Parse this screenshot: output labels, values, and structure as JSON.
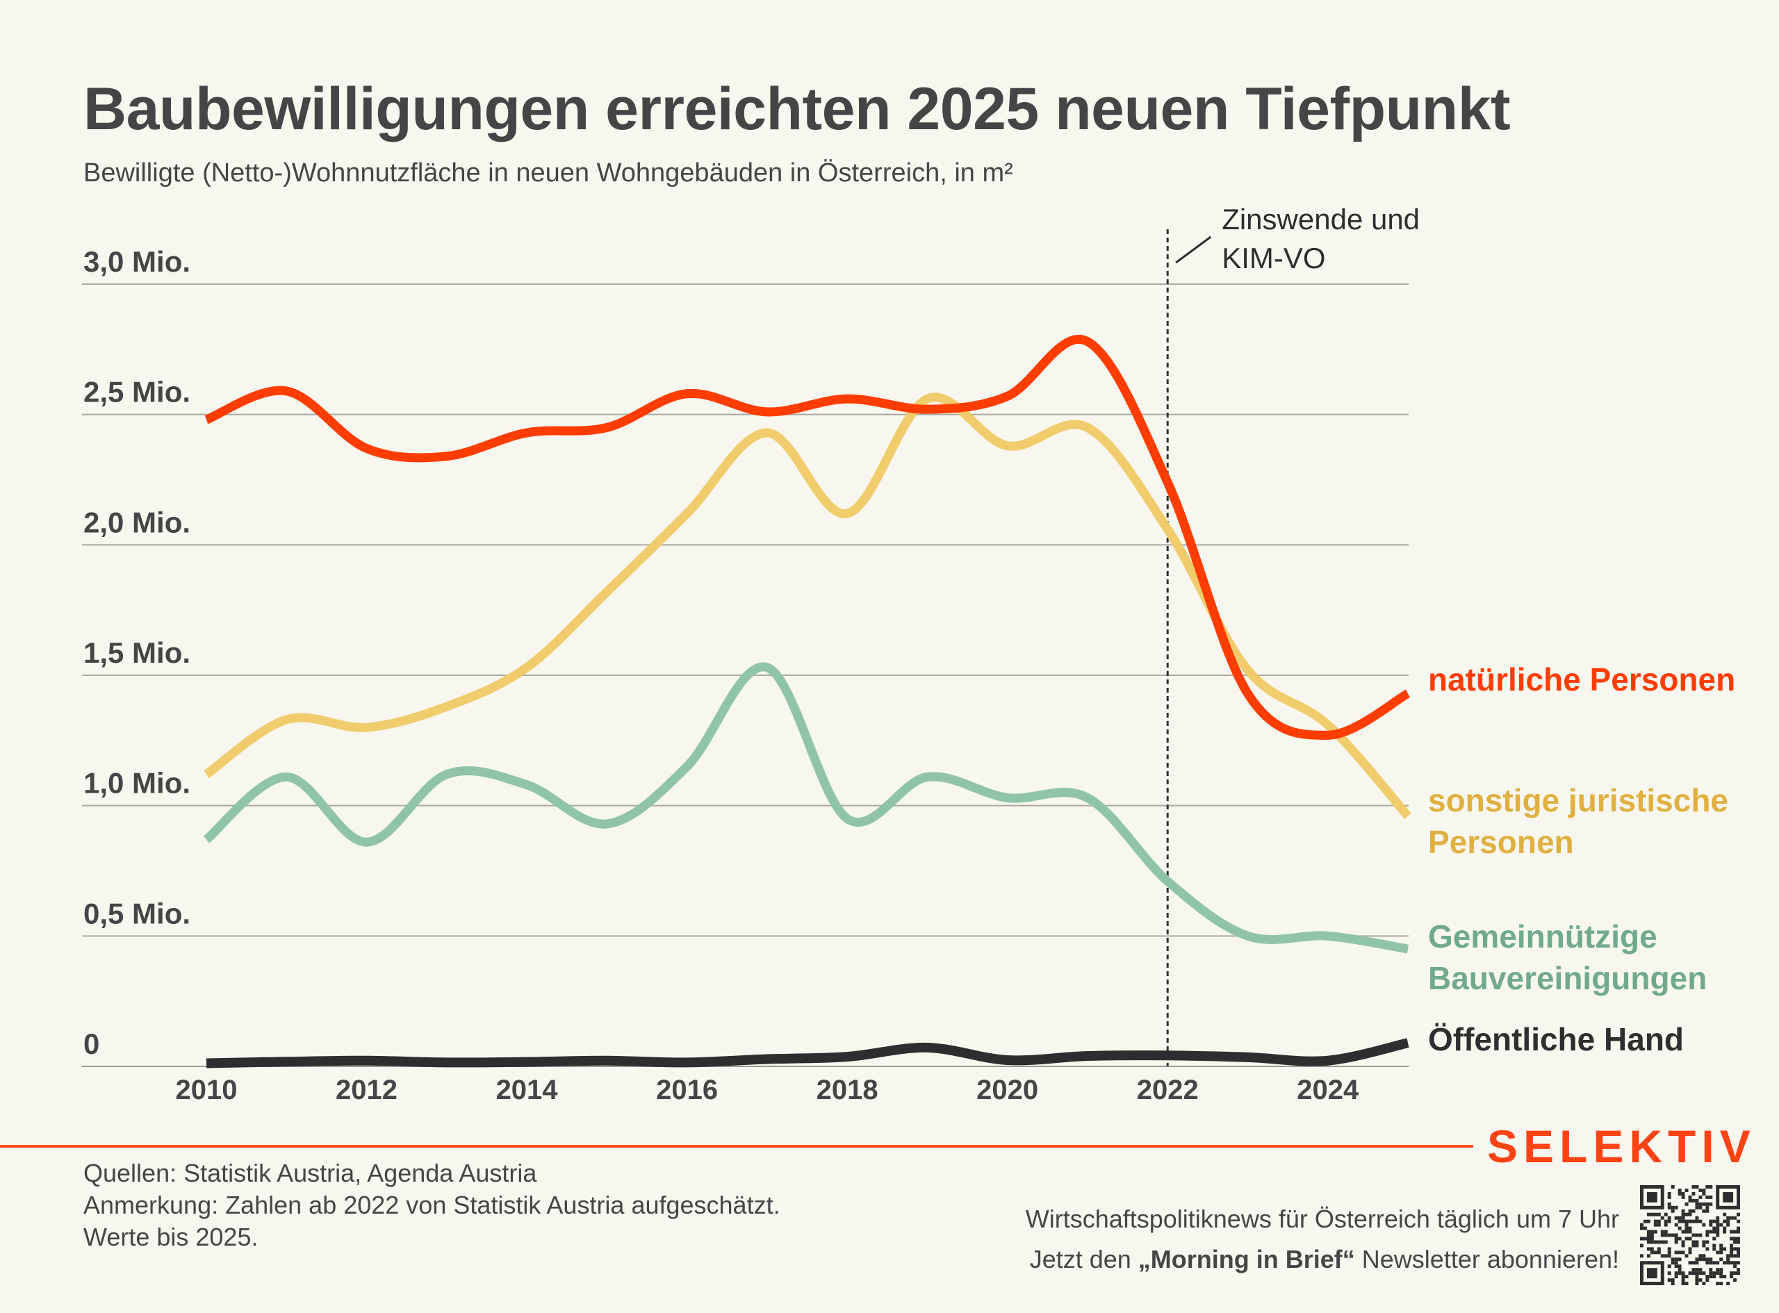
{
  "header": {
    "title": "Baubewilligungen erreichten 2025 neuen Tiefpunkt",
    "subtitle": "Bewilligte (Netto-)Wohnnutzfläche in neuen Wohngebäuden in Österreich, in m²"
  },
  "chart_data": {
    "type": "line",
    "title": "Baubewilligungen erreichten 2025 neuen Tiefpunkt",
    "subtitle": "Bewilligte (Netto-)Wohnnutzfläche in neuen Wohngebäuden in Österreich, in m²",
    "xlabel": "",
    "ylabel": "",
    "unit": "Mio. m²",
    "x": [
      2010,
      2011,
      2012,
      2013,
      2014,
      2015,
      2016,
      2017,
      2018,
      2019,
      2020,
      2021,
      2022,
      2023,
      2024,
      2025
    ],
    "xlim": [
      2010,
      2025
    ],
    "ylim": [
      0,
      3.0
    ],
    "grid": true,
    "y_ticks": [
      {
        "value": 0,
        "label": "0"
      },
      {
        "value": 0.5,
        "label": "0,5 Mio."
      },
      {
        "value": 1.0,
        "label": "1,0 Mio."
      },
      {
        "value": 1.5,
        "label": "1,5 Mio."
      },
      {
        "value": 2.0,
        "label": "2,0 Mio."
      },
      {
        "value": 2.5,
        "label": "2,5 Mio."
      },
      {
        "value": 3.0,
        "label": "3,0 Mio."
      }
    ],
    "x_ticks": [
      {
        "value": 2010,
        "label": "2010"
      },
      {
        "value": 2012,
        "label": "2012"
      },
      {
        "value": 2014,
        "label": "2014"
      },
      {
        "value": 2016,
        "label": "2016"
      },
      {
        "value": 2018,
        "label": "2018"
      },
      {
        "value": 2020,
        "label": "2020"
      },
      {
        "value": 2022,
        "label": "2022"
      },
      {
        "value": 2024,
        "label": "2024"
      }
    ],
    "legend": "direct-labels-right",
    "series": [
      {
        "name": "natürliche Personen",
        "label_lines": [
          "natürliche Personen"
        ],
        "color": "#ff3d00",
        "label_color": "#ff3d00",
        "values": [
          2.48,
          2.59,
          2.37,
          2.34,
          2.43,
          2.45,
          2.58,
          2.51,
          2.56,
          2.52,
          2.57,
          2.78,
          2.24,
          1.43,
          1.27,
          1.43
        ]
      },
      {
        "name": "sonstige juristische Personen",
        "label_lines": [
          "sonstige juristische",
          "Personen"
        ],
        "color": "#f0cc6c",
        "label_color": "#e0b040",
        "values": [
          1.12,
          1.33,
          1.3,
          1.38,
          1.53,
          1.82,
          2.12,
          2.43,
          2.12,
          2.56,
          2.38,
          2.45,
          2.06,
          1.52,
          1.31,
          0.96
        ]
      },
      {
        "name": "Gemeinnützige Bauvereinigungen",
        "label_lines": [
          "Gemeinnützige",
          "Bauvereinigungen"
        ],
        "color": "#90c4aa",
        "label_color": "#70aa8a",
        "values": [
          0.87,
          1.11,
          0.86,
          1.12,
          1.08,
          0.93,
          1.15,
          1.53,
          0.95,
          1.11,
          1.03,
          1.03,
          0.71,
          0.5,
          0.5,
          0.45
        ]
      },
      {
        "name": "Öffentliche Hand",
        "label_lines": [
          "Öffentliche Hand"
        ],
        "color": "#2e2e2e",
        "label_color": "#2e2e2e",
        "values": [
          0.012,
          0.018,
          0.022,
          0.015,
          0.017,
          0.022,
          0.015,
          0.028,
          0.037,
          0.072,
          0.024,
          0.04,
          0.042,
          0.035,
          0.022,
          0.09
        ]
      }
    ],
    "annotations": [
      {
        "x": 2022,
        "type": "vertical-dashed-line",
        "text_lines": [
          "Zinswende und",
          "KIM-VO"
        ]
      }
    ]
  },
  "footer": {
    "source": "Quellen: Statistik Austria, Agenda Austria",
    "note": "Anmerkung: Zahlen ab 2022 von Statistik Austria aufgeschätzt.",
    "note2": "Werte bis 2025.",
    "brand": "SELEKTIV",
    "promo_line1": "Wirtschaftspolitiknews für Österreich täglich um 7 Uhr",
    "promo_line2_pre": "Jetzt den ",
    "promo_line2_bold": "„Morning in Brief“",
    "promo_line2_post": " Newsletter abonnieren!",
    "qr_icon": "qr-code-icon"
  }
}
